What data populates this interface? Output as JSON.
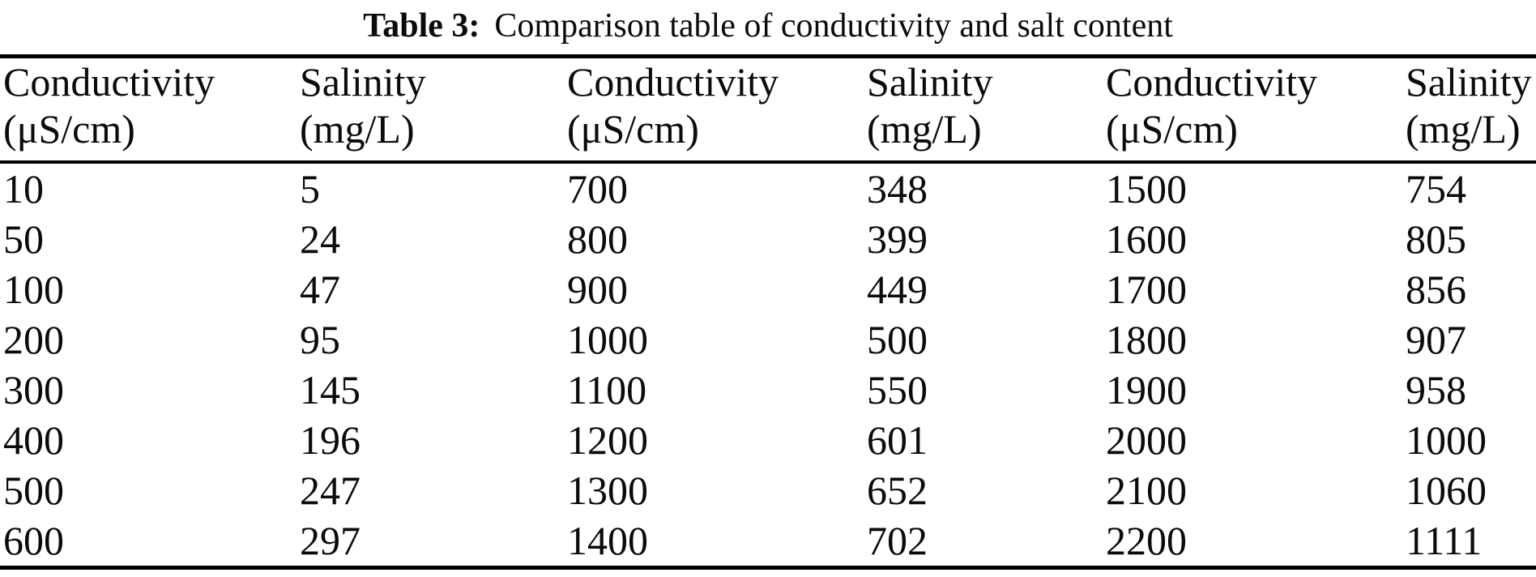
{
  "caption": {
    "label": "Table 3:",
    "text": "Comparison table of conductivity and salt content"
  },
  "table": {
    "column_headers": [
      {
        "name": "Conductivity",
        "unit": "(μS/cm)"
      },
      {
        "name": "Salinity",
        "unit": "(mg/L)"
      },
      {
        "name": "Conductivity",
        "unit": "(μS/cm)"
      },
      {
        "name": "Salinity",
        "unit": "(mg/L)"
      },
      {
        "name": "Conductivity",
        "unit": "(μS/cm)"
      },
      {
        "name": "Salinity",
        "unit": "(mg/L)"
      }
    ],
    "rows": [
      [
        "10",
        "5",
        "700",
        "348",
        "1500",
        "754"
      ],
      [
        "50",
        "24",
        "800",
        "399",
        "1600",
        "805"
      ],
      [
        "100",
        "47",
        "900",
        "449",
        "1700",
        "856"
      ],
      [
        "200",
        "95",
        "1000",
        "500",
        "1800",
        "907"
      ],
      [
        "300",
        "145",
        "1100",
        "550",
        "1900",
        "958"
      ],
      [
        "400",
        "196",
        "1200",
        "601",
        "2000",
        "1000"
      ],
      [
        "500",
        "247",
        "1300",
        "652",
        "2100",
        "1060"
      ],
      [
        "600",
        "297",
        "1400",
        "702",
        "2200",
        "1111"
      ]
    ]
  },
  "colors": {
    "text": "#0b0b0b",
    "rule": "#000000",
    "background": "#ffffff"
  }
}
